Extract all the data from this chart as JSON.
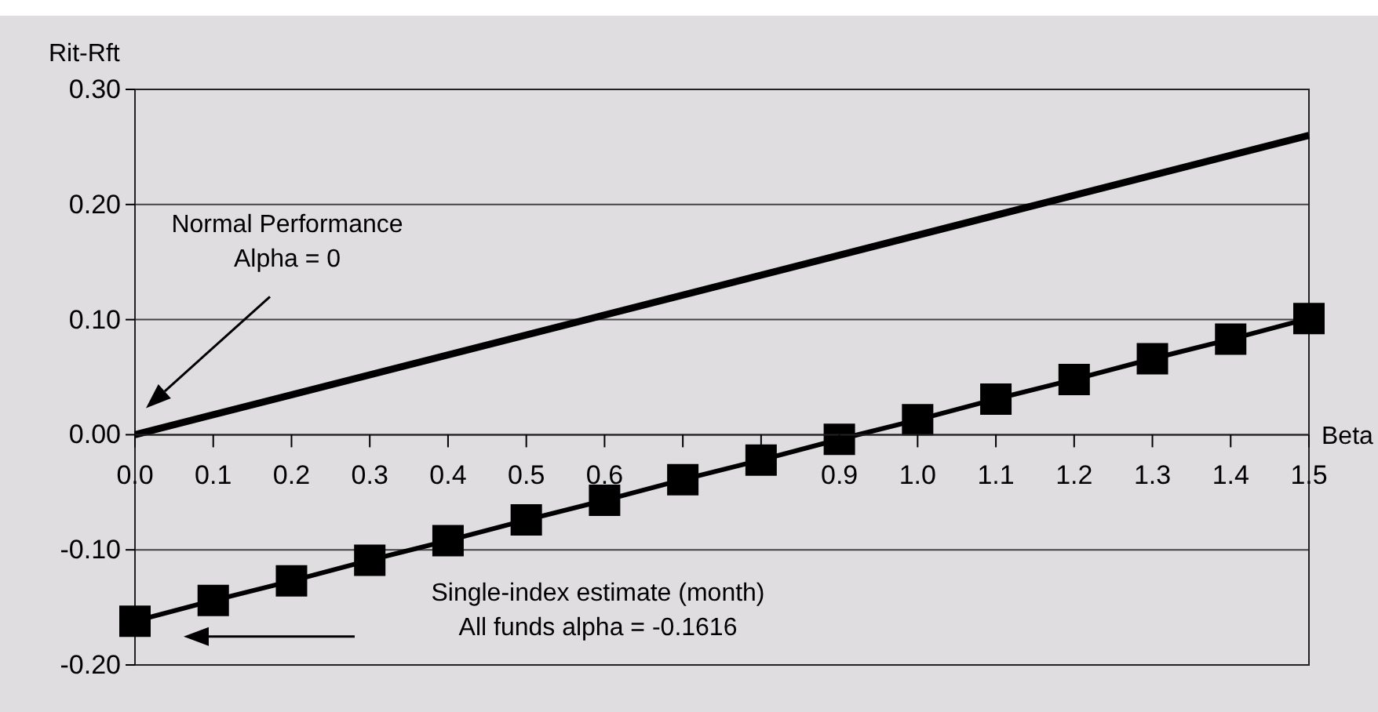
{
  "chart_data": {
    "type": "line",
    "xlabel": "Beta",
    "ylabel": "Rit-Rft",
    "xlim": [
      0,
      1.5
    ],
    "xticks": [
      {
        "value": 0,
        "label": "0.0"
      },
      {
        "value": 0.1,
        "label": "0.1"
      },
      {
        "value": 0.2,
        "label": "0.2"
      },
      {
        "value": 0.3,
        "label": "0.3"
      },
      {
        "value": 0.4,
        "label": "0.4"
      },
      {
        "value": 0.5,
        "label": "0.5"
      },
      {
        "value": 0.6,
        "label": "0.6"
      },
      {
        "value": 0.7,
        "label": null
      },
      {
        "value": 0.8,
        "label": null
      },
      {
        "value": 0.9,
        "label": "0.9"
      },
      {
        "value": 1,
        "label": "1.0"
      },
      {
        "value": 1.1,
        "label": "1.1"
      },
      {
        "value": 1.2,
        "label": "1.2"
      },
      {
        "value": 1.3,
        "label": "1.3"
      },
      {
        "value": 1.4,
        "label": "1.4"
      },
      {
        "value": 1.5,
        "label": "1.5"
      }
    ],
    "ylim": [
      -0.2,
      0.3
    ],
    "yticks": [
      {
        "value": -0.2,
        "label": "-0.20"
      },
      {
        "value": -0.1,
        "label": "-0.10"
      },
      {
        "value": 0,
        "label": "0.00"
      },
      {
        "value": 0.1,
        "label": "0.10"
      },
      {
        "value": 0.2,
        "label": "0.20"
      },
      {
        "value": 0.3,
        "label": "0.30"
      }
    ],
    "grid": "y",
    "series": [
      {
        "color": "#000000",
        "x": [
          0,
          1.5
        ],
        "values": [
          0,
          0.26
        ],
        "marker": "none"
      },
      {
        "color": "#000000",
        "x": [
          0,
          0.1,
          0.2,
          0.3,
          0.4,
          0.5,
          0.6,
          0.7,
          0.8,
          0.9,
          1,
          1.1,
          1.2,
          1.3,
          1.4,
          1.5
        ],
        "values": [
          -0.162,
          -0.144,
          -0.127,
          -0.109,
          -0.092,
          -0.074,
          -0.057,
          -0.039,
          -0.022,
          -0.004,
          0.013,
          0.031,
          0.048,
          0.066,
          0.083,
          0.101
        ],
        "marker": "square"
      }
    ],
    "annotations": [
      "Normal Performance\nAlpha = 0",
      "Single-index estimate (month)\nAll funds alpha = -0.1616"
    ]
  }
}
